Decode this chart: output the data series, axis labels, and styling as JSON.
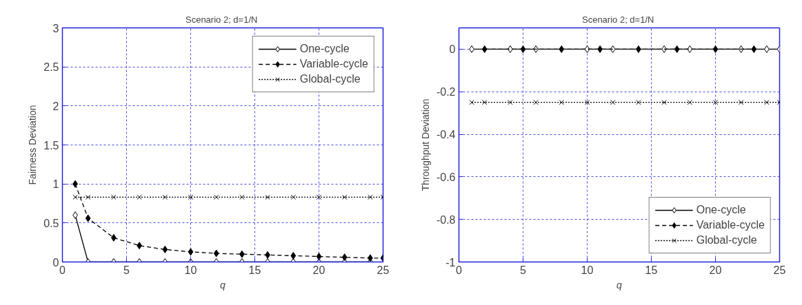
{
  "chart_data": [
    {
      "type": "line",
      "title": "Scenario 2;  d=1/N",
      "xlabel": "q",
      "ylabel": "Fairness Deviation",
      "xlim": [
        0,
        25
      ],
      "ylim": [
        0,
        3
      ],
      "xticks": [
        0,
        5,
        10,
        15,
        20,
        25
      ],
      "yticks": [
        0,
        0.5,
        1,
        1.5,
        2,
        2.5,
        3
      ],
      "grid": true,
      "legend": "top right",
      "series": [
        {
          "name": "One-cycle",
          "color": "#000000",
          "line_style": "solid",
          "marker": "diamond",
          "x": [
            1,
            2,
            4,
            6,
            8,
            10,
            12,
            14,
            16,
            18,
            20,
            22,
            24
          ],
          "values": [
            0.6,
            0,
            0,
            0,
            0,
            0,
            0,
            0,
            0,
            0,
            0,
            0,
            0
          ]
        },
        {
          "name": "Variable-cycle",
          "color": "#000000",
          "line_style": "dashed",
          "marker": "diamond",
          "x": [
            1,
            2,
            4,
            6,
            8,
            10,
            12,
            14,
            16,
            18,
            20,
            22,
            24,
            25
          ],
          "values": [
            1.0,
            0.56,
            0.31,
            0.21,
            0.16,
            0.13,
            0.11,
            0.1,
            0.09,
            0.08,
            0.07,
            0.06,
            0.05,
            0.05
          ]
        },
        {
          "name": "Global-cycle",
          "color": "#000000",
          "line_style": "dotted",
          "marker": "cross",
          "x": [
            1,
            2,
            4,
            6,
            8,
            10,
            12,
            14,
            16,
            18,
            20,
            22,
            24,
            25
          ],
          "values": [
            0.83,
            0.83,
            0.83,
            0.83,
            0.83,
            0.83,
            0.83,
            0.83,
            0.83,
            0.83,
            0.83,
            0.83,
            0.83,
            0.83
          ]
        }
      ]
    },
    {
      "type": "line",
      "title": "Scenario 2;  d=1/N",
      "xlabel": "q",
      "ylabel": "Throughput Deviation",
      "xlim": [
        0,
        25
      ],
      "ylim": [
        -1,
        0.1
      ],
      "xticks": [
        0,
        5,
        10,
        15,
        20,
        25
      ],
      "yticks": [
        -1,
        -0.8,
        -0.6,
        -0.4,
        -0.2,
        0
      ],
      "grid": true,
      "legend": "bottom right",
      "series": [
        {
          "name": "One-cycle",
          "color": "#000000",
          "line_style": "solid",
          "marker": "diamond",
          "x": [
            1,
            4,
            6,
            10,
            12,
            16,
            18,
            22,
            24,
            25
          ],
          "values": [
            0,
            0,
            0,
            0,
            0,
            0,
            0,
            0,
            0,
            0
          ]
        },
        {
          "name": "Variable-cycle",
          "color": "#000000",
          "line_style": "dashed",
          "marker": "diamond",
          "x": [
            2,
            5,
            8,
            11,
            14,
            17,
            20,
            23
          ],
          "values": [
            0,
            0,
            0,
            0,
            0,
            0,
            0,
            0
          ]
        },
        {
          "name": "Global-cycle",
          "color": "#000000",
          "line_style": "dotted",
          "marker": "cross",
          "x": [
            1,
            2,
            4,
            6,
            8,
            10,
            12,
            14,
            16,
            18,
            20,
            22,
            24,
            25
          ],
          "values": [
            -0.25,
            -0.25,
            -0.25,
            -0.25,
            -0.25,
            -0.25,
            -0.25,
            -0.25,
            -0.25,
            -0.25,
            -0.25,
            -0.25,
            -0.25,
            -0.25
          ]
        }
      ]
    }
  ]
}
